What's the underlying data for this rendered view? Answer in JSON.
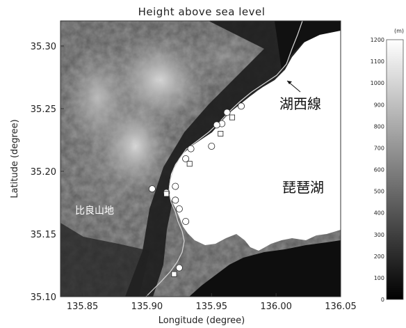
{
  "chart_data": {
    "type": "heatmap",
    "title": "Height above sea level",
    "xlabel": "Longitude (degree)",
    "ylabel": "Latitude (degree)",
    "xlim": [
      135.833,
      136.05
    ],
    "ylim": [
      35.1,
      35.32
    ],
    "x_ticks": [
      "135.85",
      "135.90",
      "135.95",
      "136.00",
      "136.05"
    ],
    "x_tick_values": [
      135.85,
      135.9,
      135.95,
      136.0,
      136.05
    ],
    "y_ticks": [
      "35.30",
      "35.25",
      "35.20",
      "35.15",
      "35.10"
    ],
    "y_tick_values": [
      35.3,
      35.25,
      35.2,
      35.15,
      35.1
    ],
    "colorbar": {
      "unit": "(m)",
      "min": 0,
      "max": 1200,
      "ticks": [
        "1200",
        "1100",
        "1000",
        "900",
        "800",
        "700",
        "600",
        "500",
        "400",
        "300",
        "200",
        "100",
        "0"
      ],
      "tick_values": [
        1200,
        1100,
        1000,
        900,
        800,
        700,
        600,
        500,
        400,
        300,
        200,
        100,
        0
      ],
      "colormap": "white-high (with white lake), grayscale"
    },
    "annotations": [
      {
        "text": "湖西線",
        "lon": 135.995,
        "lat": 35.254
      },
      {
        "text": "琵琶湖",
        "lon": 135.995,
        "lat": 35.184
      },
      {
        "text": "比良山地",
        "lon": 135.843,
        "lat": 35.161
      }
    ],
    "circle_markers": [
      {
        "lon": 135.973,
        "lat": 35.252
      },
      {
        "lon": 135.962,
        "lat": 35.247
      },
      {
        "lon": 135.958,
        "lat": 35.238
      },
      {
        "lon": 135.954,
        "lat": 35.237
      },
      {
        "lon": 135.95,
        "lat": 35.22
      },
      {
        "lon": 135.934,
        "lat": 35.218
      },
      {
        "lon": 135.93,
        "lat": 35.21
      },
      {
        "lon": 135.922,
        "lat": 35.188
      },
      {
        "lon": 135.904,
        "lat": 35.186
      },
      {
        "lon": 135.915,
        "lat": 35.183
      },
      {
        "lon": 135.922,
        "lat": 35.177
      },
      {
        "lon": 135.925,
        "lat": 35.17
      },
      {
        "lon": 135.93,
        "lat": 35.16
      },
      {
        "lon": 135.925,
        "lat": 35.123
      }
    ],
    "square_markers": [
      {
        "lon": 135.966,
        "lat": 35.243
      },
      {
        "lon": 135.957,
        "lat": 35.23
      },
      {
        "lon": 135.933,
        "lat": 35.206
      },
      {
        "lon": 135.915,
        "lat": 35.182
      },
      {
        "lon": 135.921,
        "lat": 35.118
      }
    ],
    "colors": {
      "lake": "#ffffff",
      "lowland": "#0e0e0e",
      "peak": "#e8e8e8",
      "railway": "#d8d8d8"
    }
  }
}
